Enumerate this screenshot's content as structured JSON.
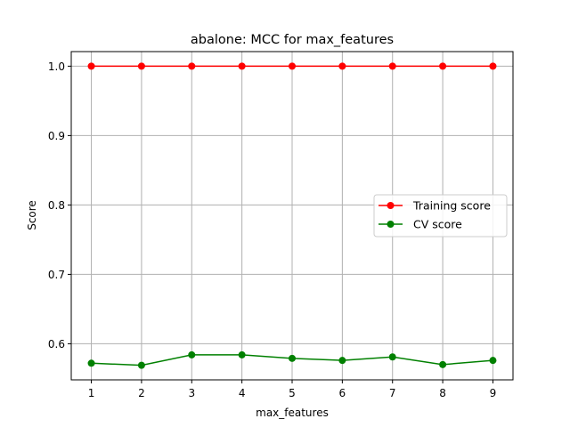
{
  "chart_data": {
    "type": "line",
    "title": "abalone: MCC for max_features",
    "xlabel": "max_features",
    "ylabel": "Score",
    "x": [
      1,
      2,
      3,
      4,
      5,
      6,
      7,
      8,
      9
    ],
    "xticks": [
      "1",
      "2",
      "3",
      "4",
      "5",
      "6",
      "7",
      "8",
      "9"
    ],
    "yticks": [
      "0.6",
      "0.7",
      "0.8",
      "0.9",
      "1.0"
    ],
    "xlim": [
      0.6,
      9.4
    ],
    "ylim": [
      0.548,
      1.021
    ],
    "grid": true,
    "legend_position": "center-right",
    "series": [
      {
        "name": "Training score",
        "color": "#ff0000",
        "marker": "circle",
        "values": [
          1.0,
          1.0,
          1.0,
          1.0,
          1.0,
          1.0,
          1.0,
          1.0,
          1.0
        ]
      },
      {
        "name": "CV score",
        "color": "#008000",
        "marker": "circle",
        "values": [
          0.572,
          0.569,
          0.584,
          0.584,
          0.579,
          0.576,
          0.581,
          0.57,
          0.576
        ]
      }
    ]
  }
}
